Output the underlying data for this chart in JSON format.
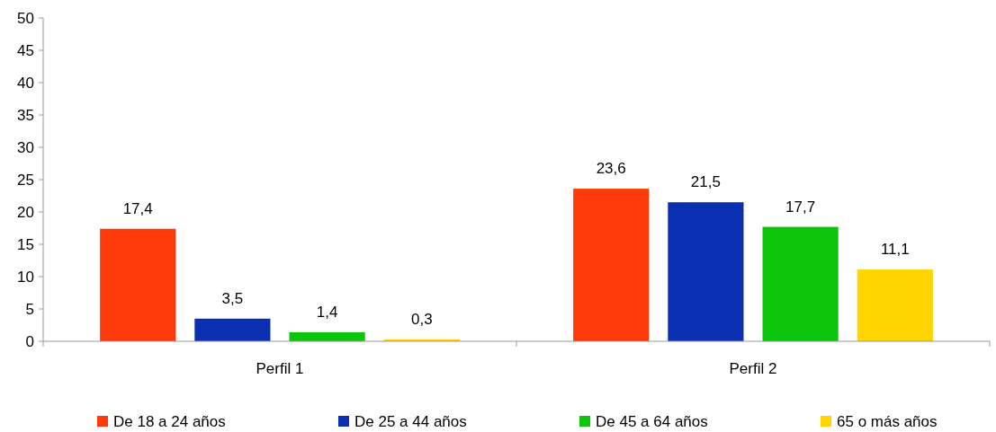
{
  "chart_data": {
    "type": "bar",
    "categories": [
      "Perfil 1",
      "Perfil 2"
    ],
    "series": [
      {
        "name": "De 18 a 24 años",
        "color": "#ff3a0a",
        "values": [
          17.4,
          23.6
        ],
        "value_labels": [
          "17,4",
          "23,6"
        ]
      },
      {
        "name": "De 25 a 44 años",
        "color": "#0a2fb0",
        "values": [
          3.5,
          21.5
        ],
        "value_labels": [
          "3,5",
          "21,5"
        ]
      },
      {
        "name": "De 45 a 64 años",
        "color": "#0cc40c",
        "values": [
          1.4,
          17.7
        ],
        "value_labels": [
          "1,4",
          "17,7"
        ]
      },
      {
        "name": "65 o más años",
        "color": "#ffd400",
        "values": [
          0.3,
          11.1
        ],
        "value_labels": [
          "0,3",
          "11,1"
        ]
      }
    ],
    "ylim": [
      0,
      50
    ],
    "yticks": [
      0,
      5,
      10,
      15,
      20,
      25,
      30,
      35,
      40,
      45,
      50
    ],
    "grid": false,
    "legend": "bottom"
  }
}
